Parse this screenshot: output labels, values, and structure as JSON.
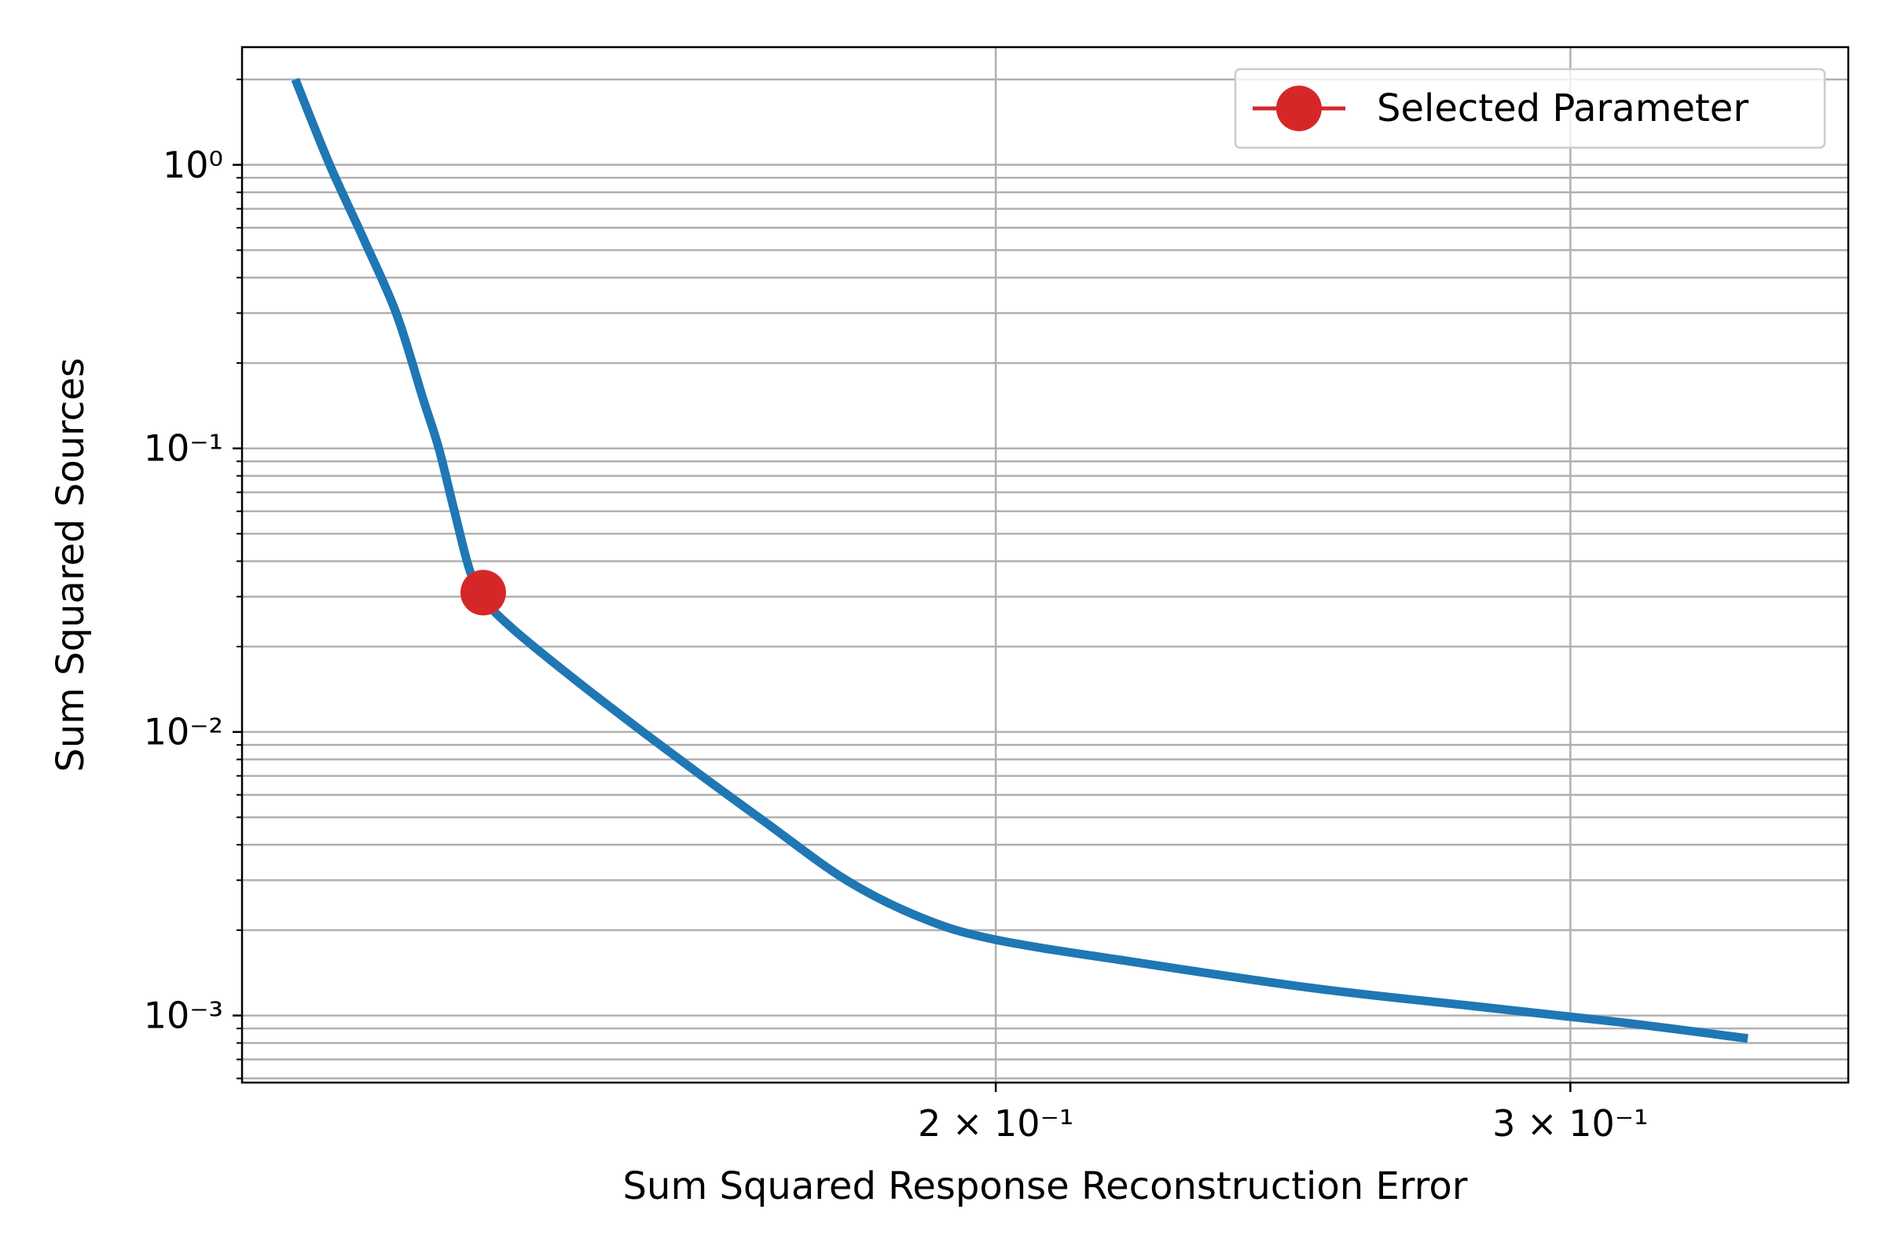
{
  "chart_data": {
    "type": "line",
    "xlabel": "Sum Squared Response Reconstruction Error",
    "ylabel": "Sum Squared Sources",
    "xscale": "log",
    "yscale": "log",
    "xlim": [
      0.1175,
      0.365
    ],
    "ylim": [
      0.00058,
      2.6
    ],
    "x_ticks": [
      {
        "value": 0.2,
        "label": "2 × 10⁻¹"
      },
      {
        "value": 0.3,
        "label": "3 × 10⁻¹"
      }
    ],
    "y_ticks": [
      {
        "value": 1,
        "label": "10⁰"
      },
      {
        "value": 0.1,
        "label": "10⁻¹"
      },
      {
        "value": 0.01,
        "label": "10⁻²"
      },
      {
        "value": 0.001,
        "label": "10⁻³"
      }
    ],
    "grid": true,
    "legend_position": "top-right",
    "series": [
      {
        "name": "",
        "color": "#1f77b4",
        "x": [
          0.122,
          0.125,
          0.128,
          0.131,
          0.1335,
          0.135,
          0.1365,
          0.138,
          0.1395,
          0.142,
          0.146,
          0.152,
          0.16,
          0.17,
          0.18,
          0.19,
          0.2,
          0.22,
          0.25,
          0.28,
          0.31,
          0.34
        ],
        "y": [
          2.0,
          1.0,
          0.55,
          0.3,
          0.15,
          0.1,
          0.06,
          0.037,
          0.029,
          0.0235,
          0.018,
          0.0125,
          0.008,
          0.0048,
          0.003,
          0.0022,
          0.00185,
          0.00155,
          0.00125,
          0.00108,
          0.00095,
          0.00083
        ]
      }
    ],
    "selected_point": {
      "name": "Selected Parameter",
      "x": 0.1393,
      "y": 0.031,
      "color": "#d62728"
    }
  }
}
